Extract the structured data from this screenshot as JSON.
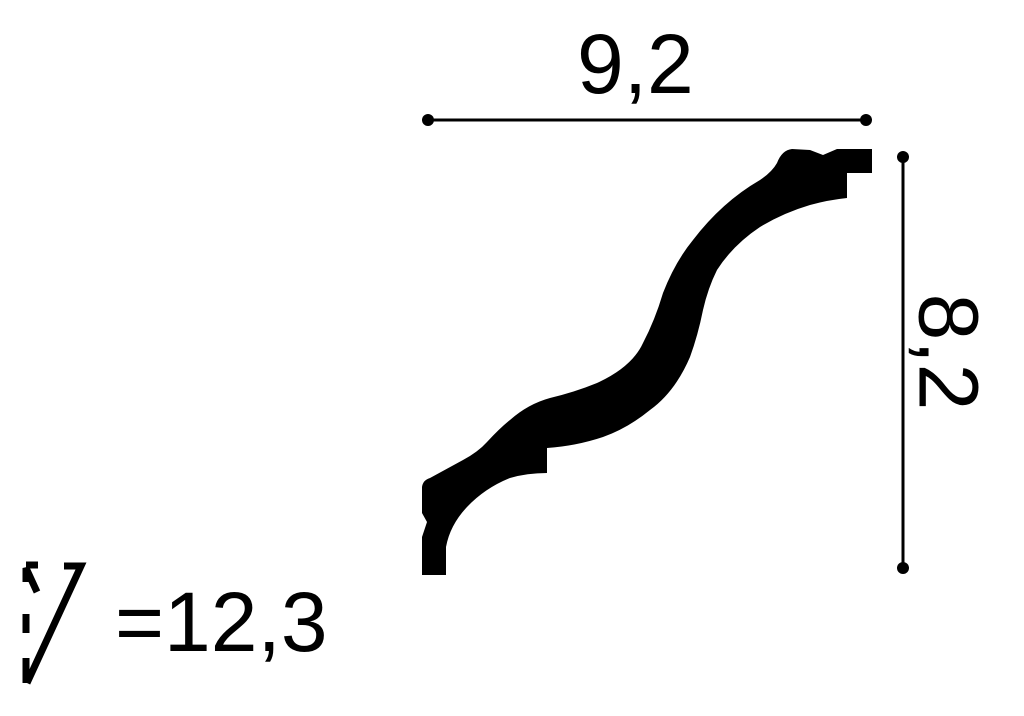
{
  "dimensions": {
    "width_label": "9,2",
    "height_label": "8,2",
    "length_label": "=12,3"
  },
  "icons": {
    "profile": "crown-molding-profile",
    "length_symbol": "molding-length-icon"
  },
  "colors": {
    "ink": "#000000",
    "background": "#ffffff"
  }
}
